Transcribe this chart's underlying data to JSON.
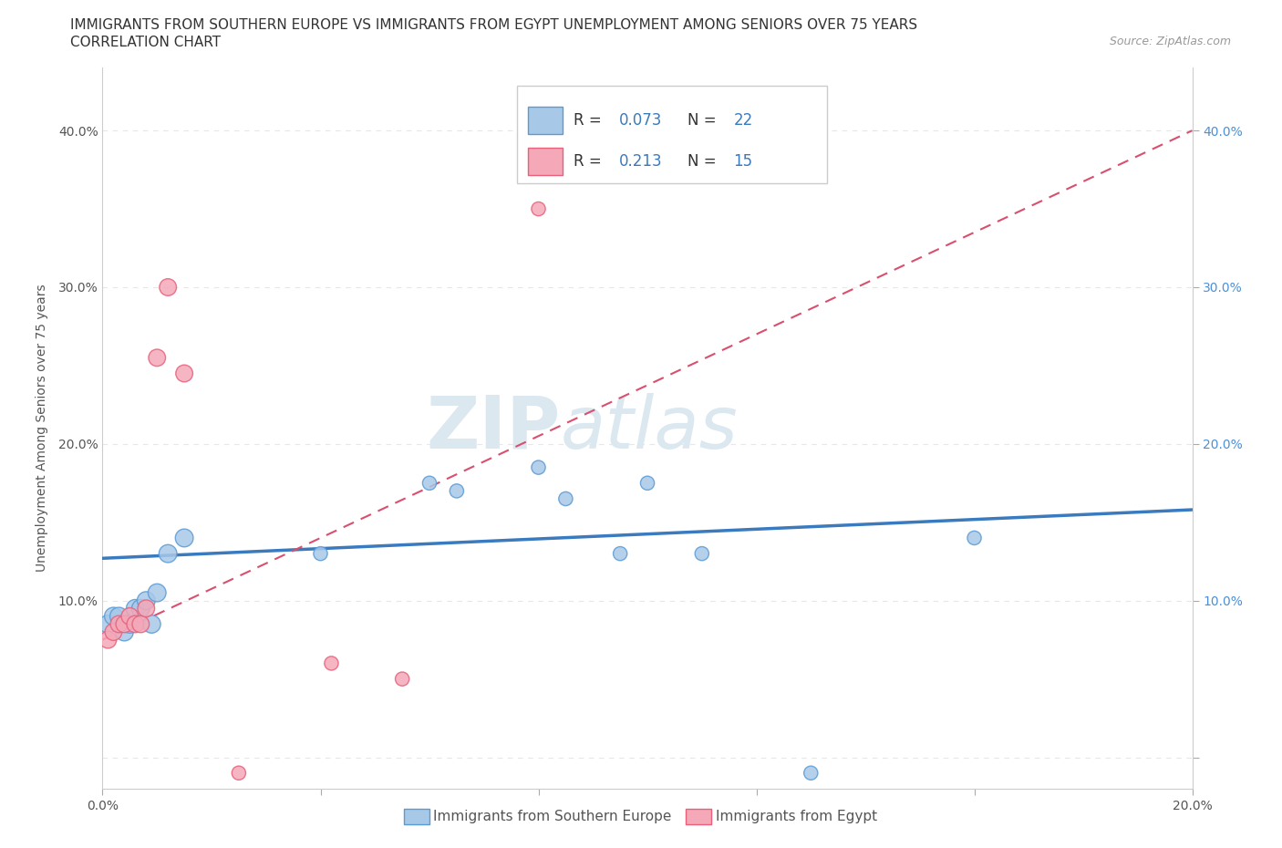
{
  "title_line1": "IMMIGRANTS FROM SOUTHERN EUROPE VS IMMIGRANTS FROM EGYPT UNEMPLOYMENT AMONG SENIORS OVER 75 YEARS",
  "title_line2": "CORRELATION CHART",
  "source_text": "Source: ZipAtlas.com",
  "ylabel": "Unemployment Among Seniors over 75 years",
  "xlim": [
    0.0,
    0.2
  ],
  "ylim": [
    -0.02,
    0.44
  ],
  "x_ticks": [
    0.0,
    0.04,
    0.08,
    0.12,
    0.16,
    0.2
  ],
  "x_tick_labels": [
    "0.0%",
    "",
    "",
    "",
    "",
    "20.0%"
  ],
  "y_ticks": [
    0.0,
    0.1,
    0.2,
    0.3,
    0.4
  ],
  "y_tick_labels_left": [
    "",
    "10.0%",
    "20.0%",
    "30.0%",
    "40.0%"
  ],
  "y_tick_labels_right": [
    "",
    "10.0%",
    "20.0%",
    "30.0%",
    "40.0%"
  ],
  "blue_color": "#a8c8e8",
  "pink_color": "#f4a8b8",
  "blue_edge_color": "#5b9bd5",
  "pink_edge_color": "#e8607a",
  "trendline_blue_color": "#3a7abf",
  "trendline_pink_color": "#d94f6e",
  "dashed_line_color": "#c8d8e8",
  "watermark_color": "#dce8f0",
  "blue_scatter_x": [
    0.001,
    0.002,
    0.003,
    0.004,
    0.005,
    0.006,
    0.007,
    0.008,
    0.009,
    0.01,
    0.012,
    0.015,
    0.04,
    0.06,
    0.065,
    0.08,
    0.085,
    0.095,
    0.1,
    0.11,
    0.13,
    0.16
  ],
  "blue_scatter_y": [
    0.085,
    0.09,
    0.09,
    0.08,
    0.085,
    0.095,
    0.095,
    0.1,
    0.085,
    0.105,
    0.13,
    0.14,
    0.13,
    0.175,
    0.17,
    0.185,
    0.165,
    0.13,
    0.175,
    0.13,
    -0.01,
    0.14
  ],
  "pink_scatter_x": [
    0.001,
    0.002,
    0.003,
    0.004,
    0.005,
    0.006,
    0.007,
    0.008,
    0.01,
    0.012,
    0.015,
    0.025,
    0.042,
    0.055,
    0.08
  ],
  "pink_scatter_y": [
    0.075,
    0.08,
    0.085,
    0.085,
    0.09,
    0.085,
    0.085,
    0.095,
    0.255,
    0.3,
    0.245,
    -0.01,
    0.06,
    0.05,
    0.35
  ],
  "blue_trendline_x": [
    0.0,
    0.2
  ],
  "blue_trendline_y": [
    0.127,
    0.158
  ],
  "pink_trendline_x": [
    0.0,
    0.2
  ],
  "pink_trendline_y": [
    0.075,
    0.4
  ],
  "background_color": "#ffffff",
  "grid_color": "#e0e8f0",
  "title_fontsize": 11,
  "axis_label_fontsize": 10,
  "tick_fontsize": 10,
  "right_tick_color": "#4a90d9",
  "left_tick_color": "#555555"
}
